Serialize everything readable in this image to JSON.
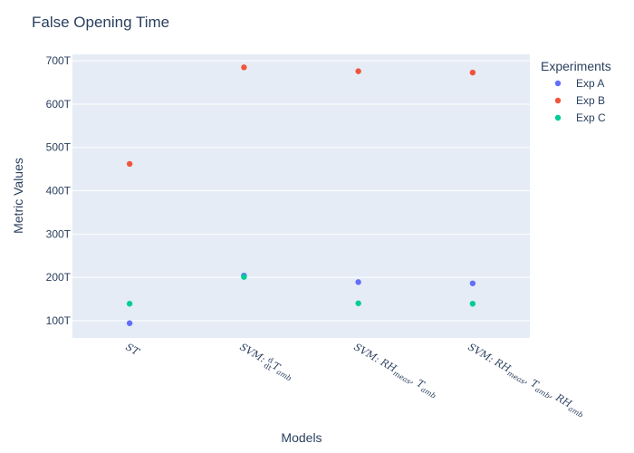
{
  "chart_data": {
    "type": "scatter",
    "title": "False Opening Time",
    "xlabel": "Models",
    "ylabel": "Metric Values",
    "categories": [
      "ST",
      "SVM: d/dt T_amb",
      "SVM: RH_meas, T_amb",
      "SVM: RH_meas, T_amb, RH_amb"
    ],
    "ytick_values": [
      100,
      200,
      300,
      400,
      500,
      600,
      700
    ],
    "ytick_labels": [
      "100T",
      "200T",
      "300T",
      "400T",
      "500T",
      "600T",
      "700T"
    ],
    "yunit": "T",
    "ylim": [
      60,
      715
    ],
    "grid": true,
    "legend_title": "Experiments",
    "legend_position": "top-right",
    "series": [
      {
        "name": "Exp A",
        "color": "#636efa",
        "values": [
          94,
          204,
          189,
          186
        ]
      },
      {
        "name": "Exp B",
        "color": "#ef553b",
        "values": [
          462,
          685,
          676,
          673
        ]
      },
      {
        "name": "Exp C",
        "color": "#00cc96",
        "values": [
          139,
          201,
          140,
          139
        ]
      }
    ]
  }
}
